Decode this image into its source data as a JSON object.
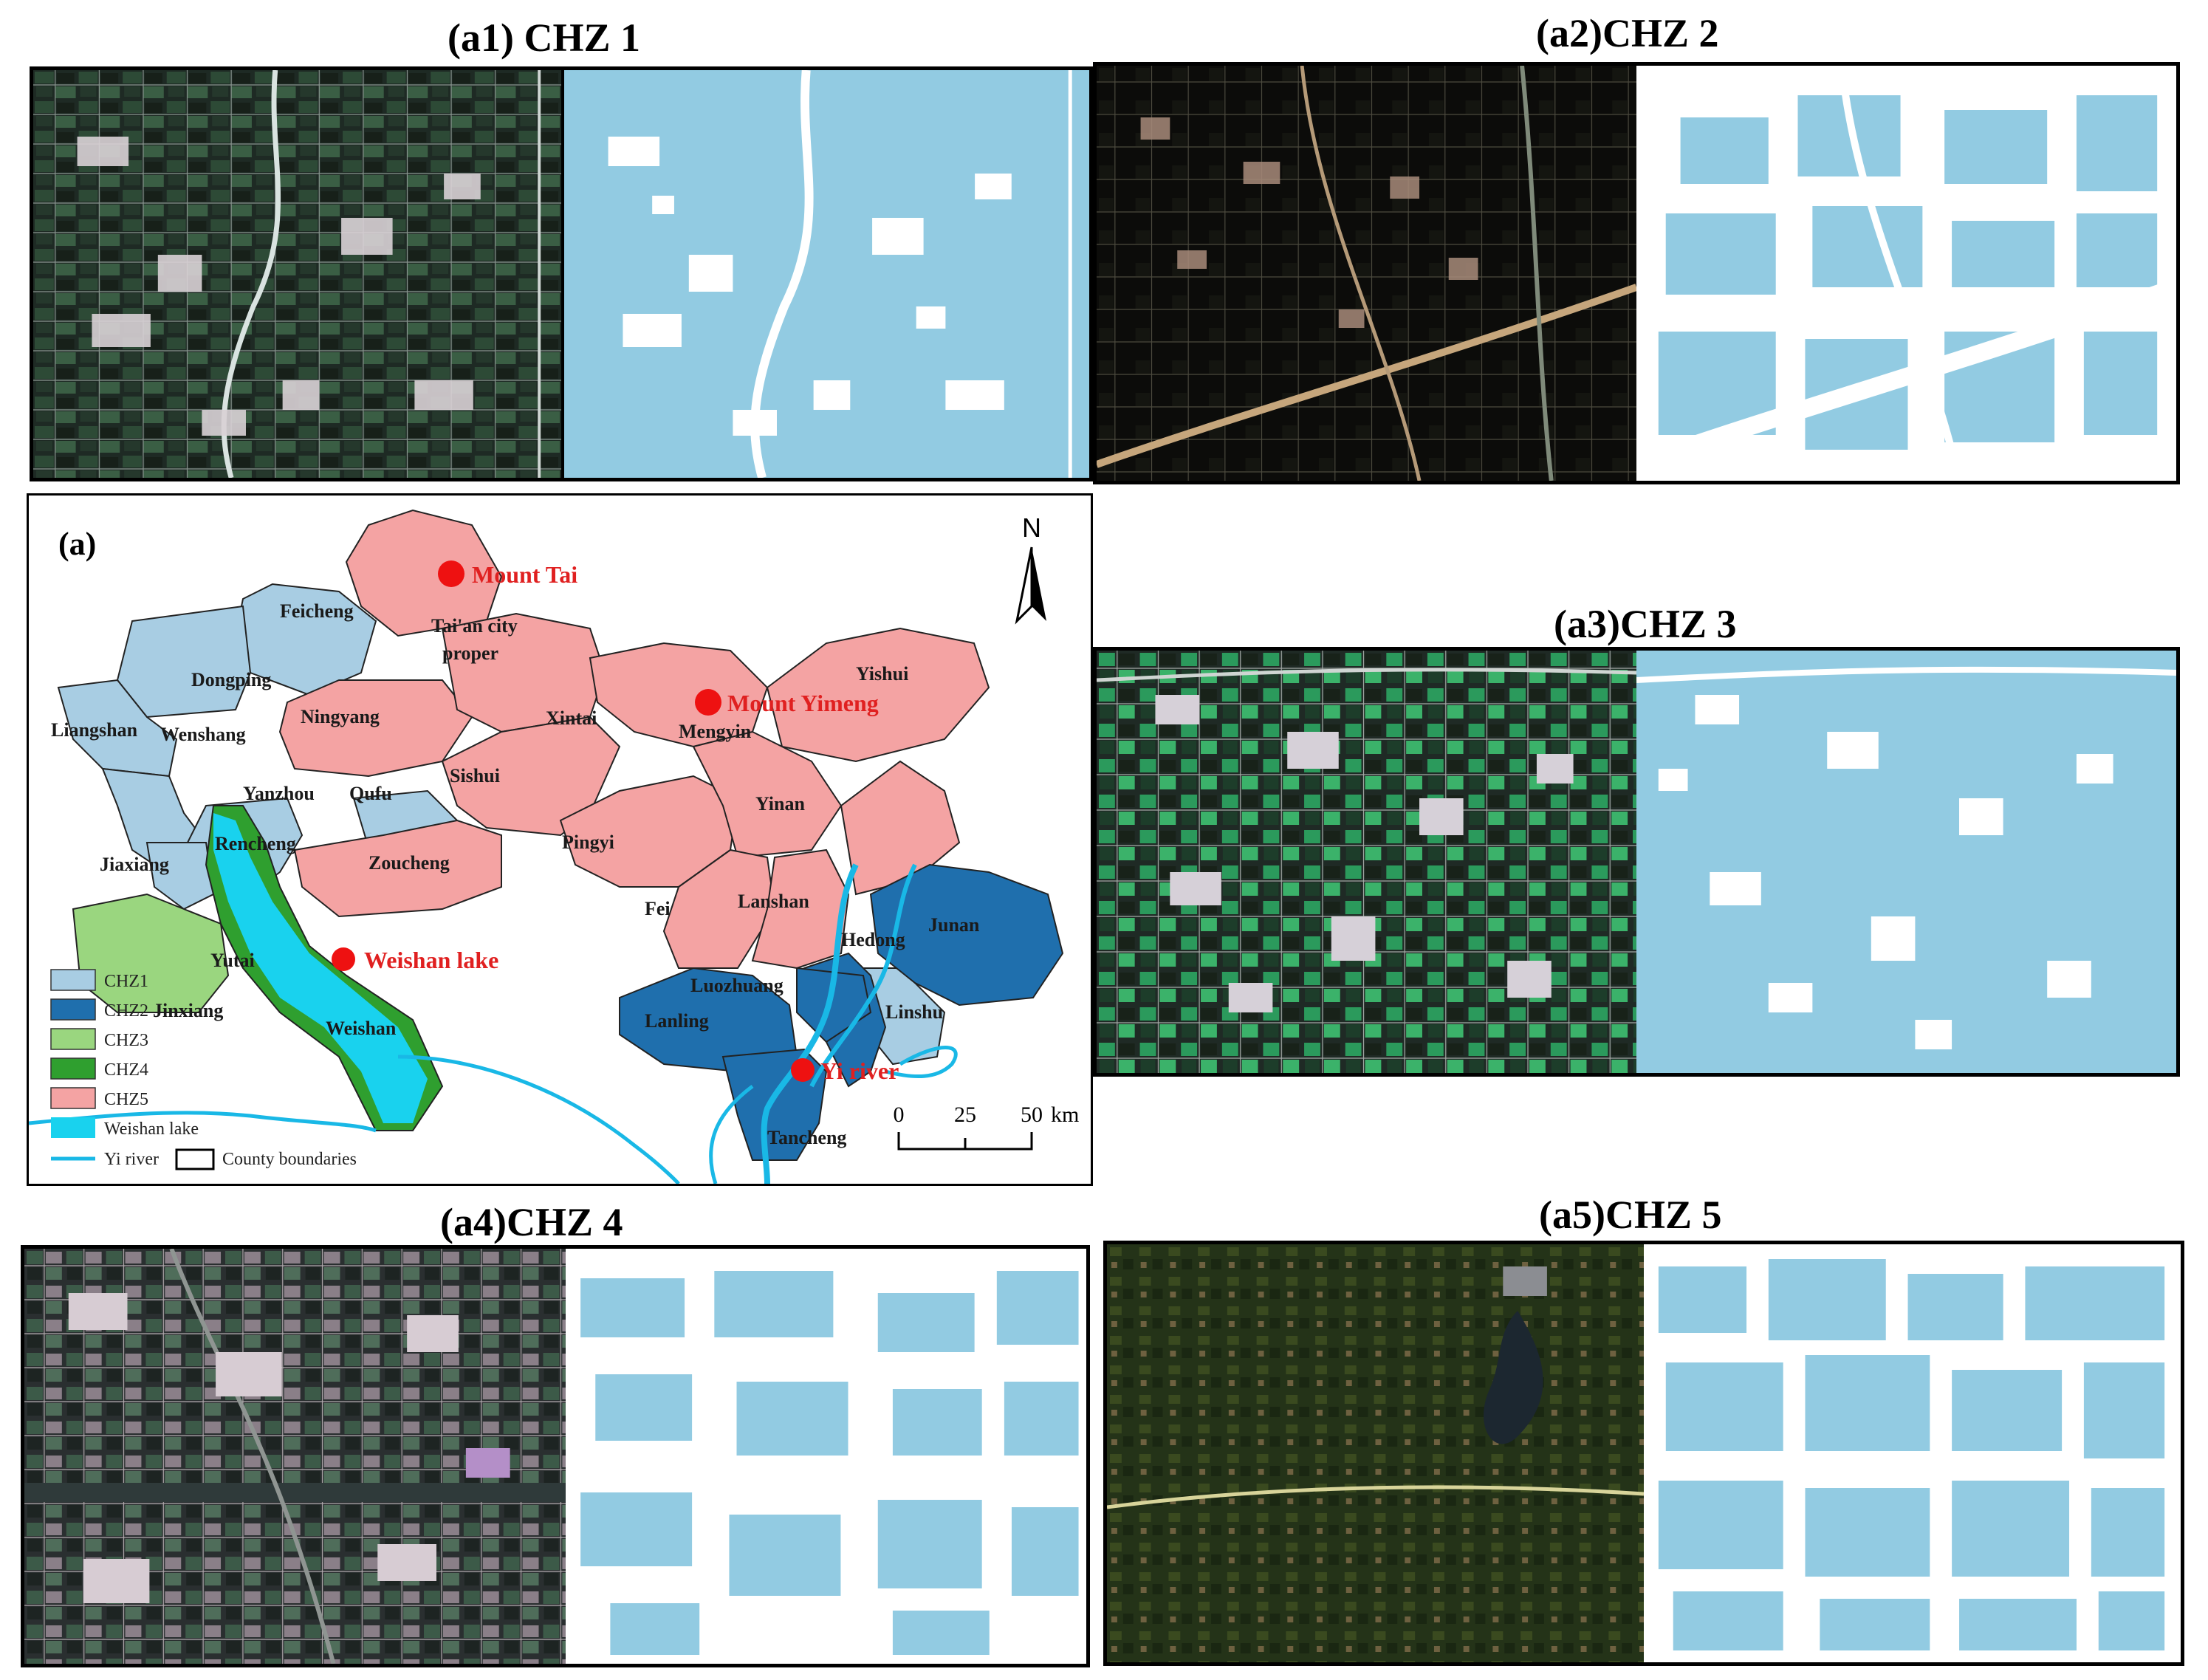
{
  "colors": {
    "chz1": "#a8cde3",
    "chz2": "#1f6fad",
    "chz3": "#9ad67f",
    "chz4": "#2f9f2f",
    "chz5": "#f4a3a3",
    "lake": "#19d2ee",
    "river": "#19b8e6",
    "mask": "#92cbe2",
    "landmark": "#ee1111"
  },
  "panels": [
    {
      "id": "a1",
      "title": "(a1) CHZ 1"
    },
    {
      "id": "a2",
      "title": "(a2)CHZ 2"
    },
    {
      "id": "a3",
      "title": "(a3)CHZ 3"
    },
    {
      "id": "a4",
      "title": "(a4)CHZ 4"
    },
    {
      "id": "a5",
      "title": "(a5)CHZ 5"
    }
  ],
  "map": {
    "label": "(a)",
    "north": "N",
    "counties": [
      "Feicheng",
      "Tai'an city",
      "proper",
      "Dongping",
      "Liangshan",
      "Wenshang",
      "Ningyang",
      "Xintai",
      "Mengyin",
      "Yishui",
      "Yanzhou",
      "Qufu",
      "Sishui",
      "Pingyi",
      "Yinan",
      "Rencheng",
      "Jiaxiang",
      "Zoucheng",
      "Fei",
      "Lanshan",
      "Hedong",
      "Junan",
      "Yutai",
      "Jinxiang",
      "Weishan",
      "Luozhuang",
      "Lanling",
      "Linshu",
      "Tancheng"
    ],
    "landmarks": [
      "Mount Tai",
      "Mount Yimeng",
      "Weishan lake",
      "Yi river"
    ],
    "legend": [
      "CHZ1",
      "CHZ2",
      "CHZ3",
      "CHZ4",
      "CHZ5",
      "Weishan lake",
      "Yi river",
      "County boundaries"
    ],
    "scale": {
      "ticks": [
        "0",
        "25",
        "50"
      ],
      "unit": "km"
    }
  }
}
